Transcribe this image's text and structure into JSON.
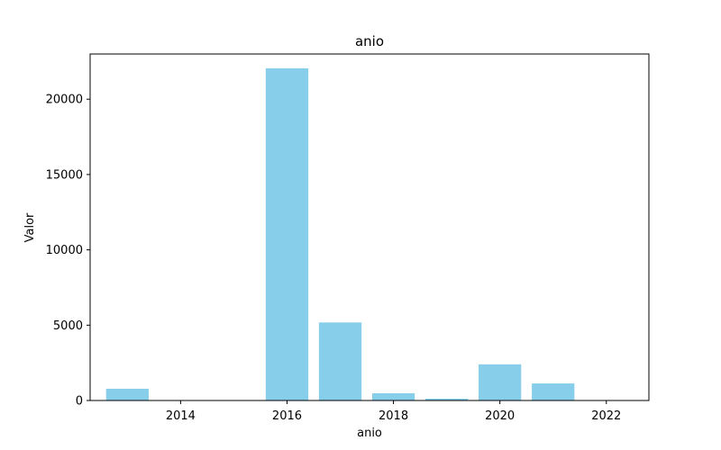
{
  "chart_data": {
    "type": "bar",
    "title": "anio",
    "xlabel": "anio",
    "ylabel": "Valor",
    "x": [
      2013,
      2016,
      2017,
      2018,
      2019,
      2020,
      2021
    ],
    "values": [
      780,
      22050,
      5180,
      480,
      120,
      2400,
      1130
    ],
    "xlim": [
      2012.3,
      2022.8
    ],
    "ylim": [
      0,
      23000
    ],
    "xticks": [
      2014,
      2016,
      2018,
      2020,
      2022
    ],
    "yticks": [
      0,
      5000,
      10000,
      15000,
      20000
    ],
    "bar_color": "#87ceeb",
    "grid": false
  }
}
